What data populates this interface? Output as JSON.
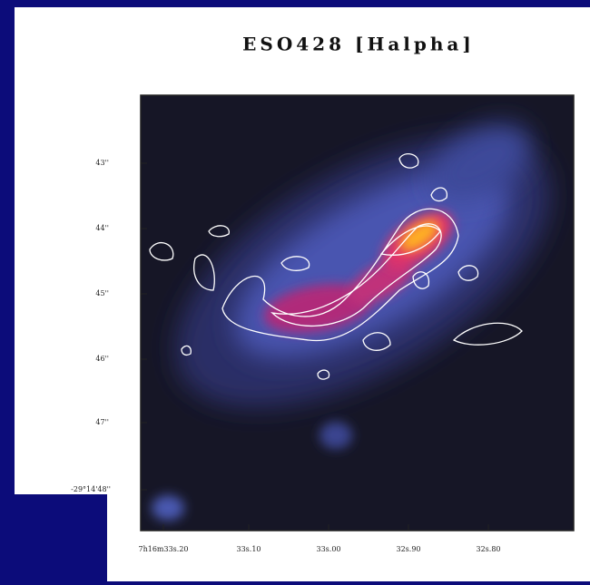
{
  "title": "ESO428 [Halpha]",
  "y_labels": [
    "43''",
    "44''",
    "45''",
    "46''",
    "47''",
    "-29°14'48''"
  ],
  "x_labels": [
    "7h16m33s.20",
    "33s.10",
    "33s.00",
    "32s.90",
    "32s.80"
  ]
}
